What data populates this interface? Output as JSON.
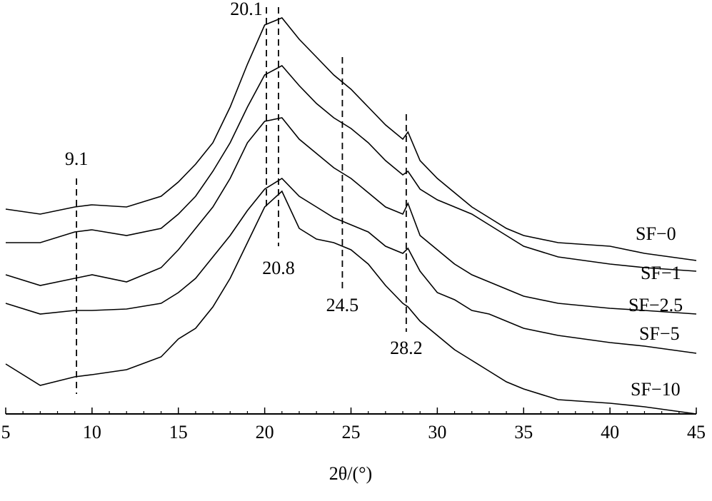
{
  "chart_data": {
    "type": "line",
    "xlabel": "2θ/(°)",
    "x": [
      5,
      7,
      9,
      10,
      12,
      14,
      15,
      16,
      17,
      18,
      19,
      20,
      21,
      22,
      23,
      24,
      25,
      26,
      27,
      28,
      28.3,
      29,
      30,
      31,
      32,
      33,
      34,
      35,
      37,
      40,
      42,
      45
    ],
    "series": [
      {
        "name": "SF−0",
        "color": "#000000",
        "values": [
          28.7,
          28,
          29,
          29.3,
          29,
          30.5,
          32.5,
          35,
          38,
          43,
          49,
          54.5,
          55.5,
          52.5,
          50,
          47.5,
          45.5,
          43,
          40.5,
          38.5,
          39.5,
          35.5,
          33,
          31,
          29,
          27.5,
          26,
          25,
          24,
          23.5,
          22.5,
          21.5
        ]
      },
      {
        "name": "SF−1",
        "color": "#000000",
        "values": [
          24,
          24,
          25.5,
          25.8,
          25,
          26,
          28,
          30.5,
          34,
          38,
          43,
          47.5,
          48.8,
          46,
          43.5,
          41.5,
          40,
          38,
          35.5,
          33.5,
          34,
          31.5,
          30,
          29,
          28,
          26.5,
          25,
          23.5,
          22,
          21,
          20.5,
          20
        ]
      },
      {
        "name": "SF−2.5",
        "color": "#000000",
        "values": [
          19.5,
          18,
          19,
          19.5,
          18.5,
          20.5,
          23,
          26,
          29,
          33,
          38,
          41,
          41.5,
          38.5,
          36.5,
          34.5,
          33,
          31,
          29,
          28,
          29.5,
          25,
          23,
          21,
          19.5,
          18.5,
          17.5,
          16.5,
          15.5,
          14.8,
          14.5,
          14
        ]
      },
      {
        "name": "SF−5",
        "color": "#000000",
        "values": [
          15.5,
          14,
          14.5,
          14.5,
          14.7,
          15.5,
          17,
          19,
          22,
          25,
          28.5,
          31.5,
          33,
          30.5,
          29,
          27.5,
          26.5,
          25.5,
          23.5,
          22.5,
          23.2,
          20,
          17,
          16,
          14.5,
          14,
          13,
          12,
          11,
          10,
          9.5,
          8.5
        ]
      },
      {
        "name": "SF−10",
        "color": "#000000",
        "values": [
          7,
          4,
          5.2,
          5.5,
          6.2,
          8,
          10.5,
          12,
          15,
          19,
          24,
          29,
          31.2,
          26,
          24.5,
          24,
          23,
          21,
          18,
          15.5,
          15,
          13,
          11,
          9,
          7.5,
          6,
          4.5,
          3.5,
          2,
          1.5,
          1,
          0
        ]
      }
    ],
    "peaks": [
      9.1,
      20.1,
      20.8,
      24.5,
      28.2
    ],
    "xlim": [
      5,
      45
    ],
    "xticks": [
      5,
      10,
      15,
      20,
      25,
      30,
      35,
      40,
      45
    ],
    "ylim": [
      0,
      58
    ]
  }
}
